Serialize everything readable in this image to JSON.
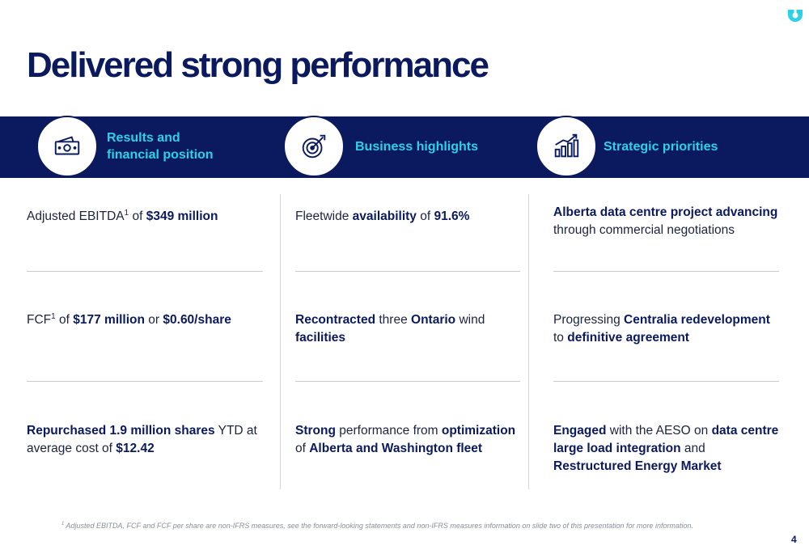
{
  "logo": {
    "icon": "brand-logo-icon",
    "color": "#29d2e8"
  },
  "title": "Delivered strong performance",
  "colors": {
    "navy": "#0b1a5e",
    "accent": "#29d2e8"
  },
  "columns": [
    {
      "heading_line1": "Results and",
      "heading_line2": "financial position",
      "icon": "cash-icon",
      "items": [
        {
          "segments": [
            {
              "t": "Adjusted EBITDA"
            },
            {
              "t": "1",
              "sup": true
            },
            {
              "t": " of "
            },
            {
              "t": "$349 million",
              "b": true
            }
          ]
        },
        {
          "segments": [
            {
              "t": "FCF"
            },
            {
              "t": "1",
              "sup": true
            },
            {
              "t": " of "
            },
            {
              "t": "$177 million",
              "b": true
            },
            {
              "t": " or "
            },
            {
              "t": "$0.60/share",
              "b": true
            }
          ]
        },
        {
          "segments": [
            {
              "t": "Repurchased 1.9 million shares",
              "b": true
            },
            {
              "t": " YTD at average cost of "
            },
            {
              "t": "$12.42",
              "b": true
            }
          ]
        }
      ]
    },
    {
      "heading_line1": "Business highlights",
      "heading_line2": "",
      "icon": "target-icon",
      "items": [
        {
          "segments": [
            {
              "t": "Fleetwide "
            },
            {
              "t": "availability",
              "b": true
            },
            {
              "t": " of "
            },
            {
              "t": "91.6%",
              "b": true
            }
          ]
        },
        {
          "segments": [
            {
              "t": "Recontracted",
              "b": true
            },
            {
              "t": " three "
            },
            {
              "t": "Ontario",
              "b": true
            },
            {
              "t": " wind "
            },
            {
              "t": "facilities",
              "b": true
            }
          ]
        },
        {
          "segments": [
            {
              "t": "Strong",
              "b": true
            },
            {
              "t": " performance from "
            },
            {
              "t": "optimization",
              "b": true
            },
            {
              "t": " of "
            },
            {
              "t": "Alberta and Washington fleet",
              "b": true
            }
          ]
        }
      ]
    },
    {
      "heading_line1": "Strategic priorities",
      "heading_line2": "",
      "icon": "growth-chart-icon",
      "items": [
        {
          "segments": [
            {
              "t": "Alberta data centre project advancing",
              "b": true
            },
            {
              "t": " through commercial negotiations"
            }
          ]
        },
        {
          "segments": [
            {
              "t": "Progressing "
            },
            {
              "t": "Centralia redevelopment",
              "b": true
            },
            {
              "t": " to "
            },
            {
              "t": "definitive agreement",
              "b": true
            }
          ]
        },
        {
          "segments": [
            {
              "t": "Engaged",
              "b": true
            },
            {
              "t": " with the AESO on "
            },
            {
              "t": "data centre large load integration",
              "b": true
            },
            {
              "t": " and "
            },
            {
              "t": "Restructured Energy Market",
              "b": true
            }
          ]
        }
      ]
    }
  ],
  "footnote_marker": "1",
  "footnote": " Adjusted EBITDA, FCF and FCF per share are non-IFRS measures, see the forward-looking statements and non-IFRS measures information on slide two of this presentation for more information.",
  "page_number": "4"
}
